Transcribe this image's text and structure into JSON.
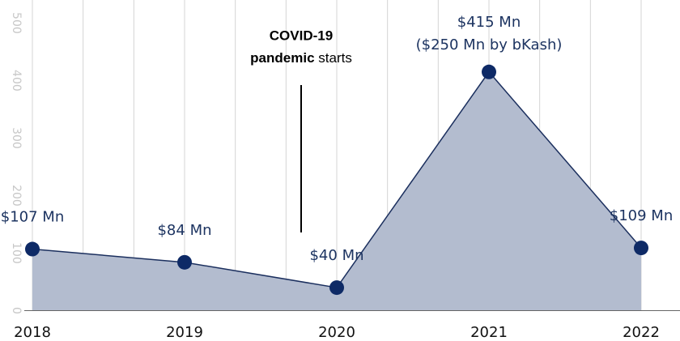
{
  "chart_data": {
    "type": "area",
    "categories": [
      "2018",
      "2019",
      "2020",
      "2021",
      "2022"
    ],
    "values": [
      107,
      84,
      40,
      415,
      109
    ],
    "value_labels": [
      "$107 Mn",
      "$84 Mn",
      "$40 Mn",
      "$415 Mn",
      "$109 Mn"
    ],
    "value_notes": [
      null,
      null,
      null,
      "($250 Mn by bKash)",
      null
    ],
    "color": "#0e2a66",
    "fill": "#b3bccf",
    "ylim": [
      0,
      540
    ],
    "yticks": [
      0,
      100,
      200,
      300,
      400,
      500
    ],
    "grid": true,
    "annotation": {
      "line1": "COVID-19",
      "line2_bold": "pandemic",
      "line2": "starts"
    }
  }
}
